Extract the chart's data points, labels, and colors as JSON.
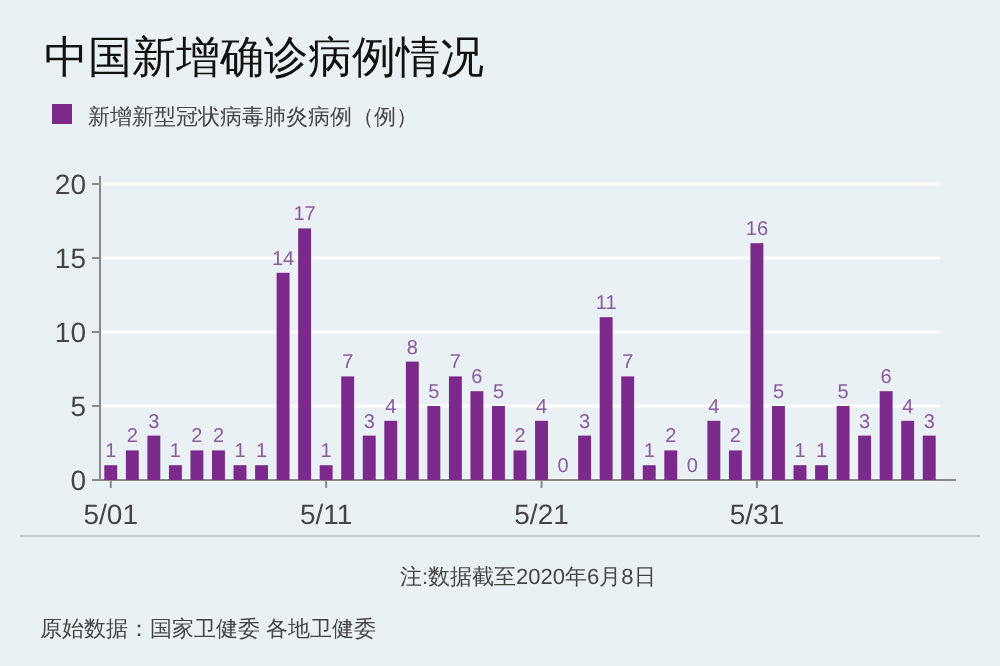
{
  "chart_data": {
    "type": "bar",
    "title": "中国新增确诊病例情况",
    "categories": [
      "5/01",
      null,
      null,
      null,
      null,
      null,
      null,
      null,
      null,
      null,
      "5/11",
      null,
      null,
      null,
      null,
      null,
      null,
      null,
      null,
      null,
      "5/21",
      null,
      null,
      null,
      null,
      null,
      null,
      null,
      null,
      null,
      "5/31",
      null,
      null,
      null,
      null,
      null,
      null,
      null,
      null
    ],
    "series": [
      {
        "name": "新增新型冠状病毒肺炎病例（例）",
        "color": "#7b2a8c",
        "values": [
          1,
          2,
          3,
          1,
          2,
          2,
          1,
          1,
          14,
          17,
          1,
          7,
          3,
          4,
          8,
          5,
          7,
          6,
          5,
          2,
          4,
          0,
          3,
          11,
          7,
          1,
          2,
          0,
          4,
          2,
          16,
          5,
          1,
          1,
          5,
          3,
          6,
          4,
          3
        ]
      }
    ],
    "ylim": [
      0,
      20
    ],
    "yticks": [
      0,
      5,
      10,
      15,
      20
    ],
    "grid": "y",
    "legend": "top left",
    "data_labels": true,
    "annotations": [
      "注:数据截至2020年6月8日",
      "原始数据：国家卫健委 各地卫健委"
    ]
  }
}
